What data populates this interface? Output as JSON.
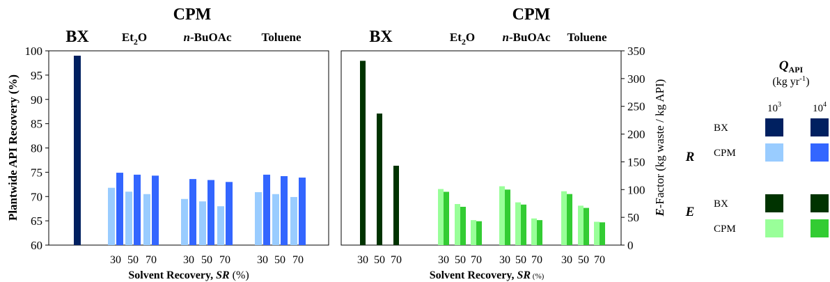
{
  "chart_data": [
    {
      "type": "bar",
      "title": "CPM",
      "group_labels": [
        {
          "text": "BX",
          "size": "big"
        },
        {
          "base": "Et",
          "sub": "2",
          "rest": "O"
        },
        {
          "italic": "n",
          "rest": "-BuOAc"
        },
        {
          "rest": "Toluene"
        }
      ],
      "xlabel": "Solvent Recovery, ",
      "xlabel_symbol": "SR",
      "xlabel_unit": " (%)",
      "ylabel": "Plantwide API Recovery (%)",
      "ylim": [
        60,
        100
      ],
      "yticks": [
        60,
        65,
        70,
        75,
        80,
        85,
        90,
        95,
        100
      ],
      "categories": [
        "BX",
        "Et2O 30",
        "Et2O 50",
        "Et2O 70",
        "n-BuOAc 30",
        "n-BuOAc 50",
        "n-BuOAc 70",
        "Toluene 30",
        "Toluene 50",
        "Toluene 70"
      ],
      "x_tick_labels": [
        "30",
        "50",
        "70",
        "30",
        "50",
        "70",
        "30",
        "50",
        "70"
      ],
      "series": [
        {
          "values": [
            null,
            71.8,
            71.0,
            70.5,
            69.5,
            69.0,
            68.0,
            70.9,
            70.5,
            69.9
          ],
          "color": "#99ccff"
        },
        {
          "values": [
            99.0,
            74.9,
            74.5,
            74.3,
            73.6,
            73.4,
            73.0,
            74.5,
            74.2,
            73.9
          ],
          "color": "#3366ff"
        }
      ],
      "bx_color": "#002060"
    },
    {
      "type": "bar",
      "title": "CPM",
      "group_labels": [
        {
          "text": "BX",
          "size": "big"
        },
        {
          "base": "Et",
          "sub": "2",
          "rest": "O"
        },
        {
          "italic": "n",
          "rest": "-BuOAc"
        },
        {
          "rest": "Toluene"
        }
      ],
      "xlabel": "Solvent Recovery, ",
      "xlabel_symbol": "SR",
      "xlabel_unit": " (%)",
      "ylabel_symbol": "E",
      "ylabel": "-Factor (kg waste / kg API)",
      "ylim": [
        0,
        350
      ],
      "yticks": [
        0,
        50,
        100,
        150,
        200,
        250,
        300,
        350
      ],
      "categories": [
        "BX 30",
        "BX 50",
        "BX 70",
        "Et2O 30",
        "Et2O 50",
        "Et2O 70",
        "n-BuOAc 30",
        "n-BuOAc 50",
        "n-BuOAc 70",
        "Toluene 30",
        "Toluene 50",
        "Toluene 70"
      ],
      "x_tick_labels": [
        "30",
        "50",
        "70",
        "30",
        "50",
        "70",
        "30",
        "50",
        "70",
        "30",
        "50",
        "70"
      ],
      "series": [
        {
          "values": [
            null,
            null,
            null,
            101,
            74,
            45,
            106,
            77,
            48,
            97,
            71,
            42
          ],
          "color": "#99ff99"
        },
        {
          "values": [
            332,
            237,
            143,
            96,
            69,
            43,
            100,
            73,
            45,
            92,
            67,
            41
          ],
          "color": "#33cc33"
        }
      ],
      "bx_color": "#003300"
    }
  ],
  "legend": {
    "title_symbol": "Q",
    "title_sub": "API",
    "unit_open": "(kg yr",
    "unit_sup": "-1",
    "unit_close": ")",
    "col_labels": [
      {
        "base": "10",
        "sup": "3"
      },
      {
        "base": "10",
        "sup": "4"
      }
    ],
    "groups": [
      {
        "symbol": "R",
        "rows": [
          {
            "label": "BX",
            "colors": [
              "#002060",
              "#002060"
            ]
          },
          {
            "label": "CPM",
            "colors": [
              "#99ccff",
              "#3366ff"
            ]
          }
        ]
      },
      {
        "symbol": "E",
        "rows": [
          {
            "label": "BX",
            "colors": [
              "#003300",
              "#003300"
            ]
          },
          {
            "label": "CPM",
            "colors": [
              "#99ff99",
              "#33cc33"
            ]
          }
        ]
      }
    ]
  }
}
